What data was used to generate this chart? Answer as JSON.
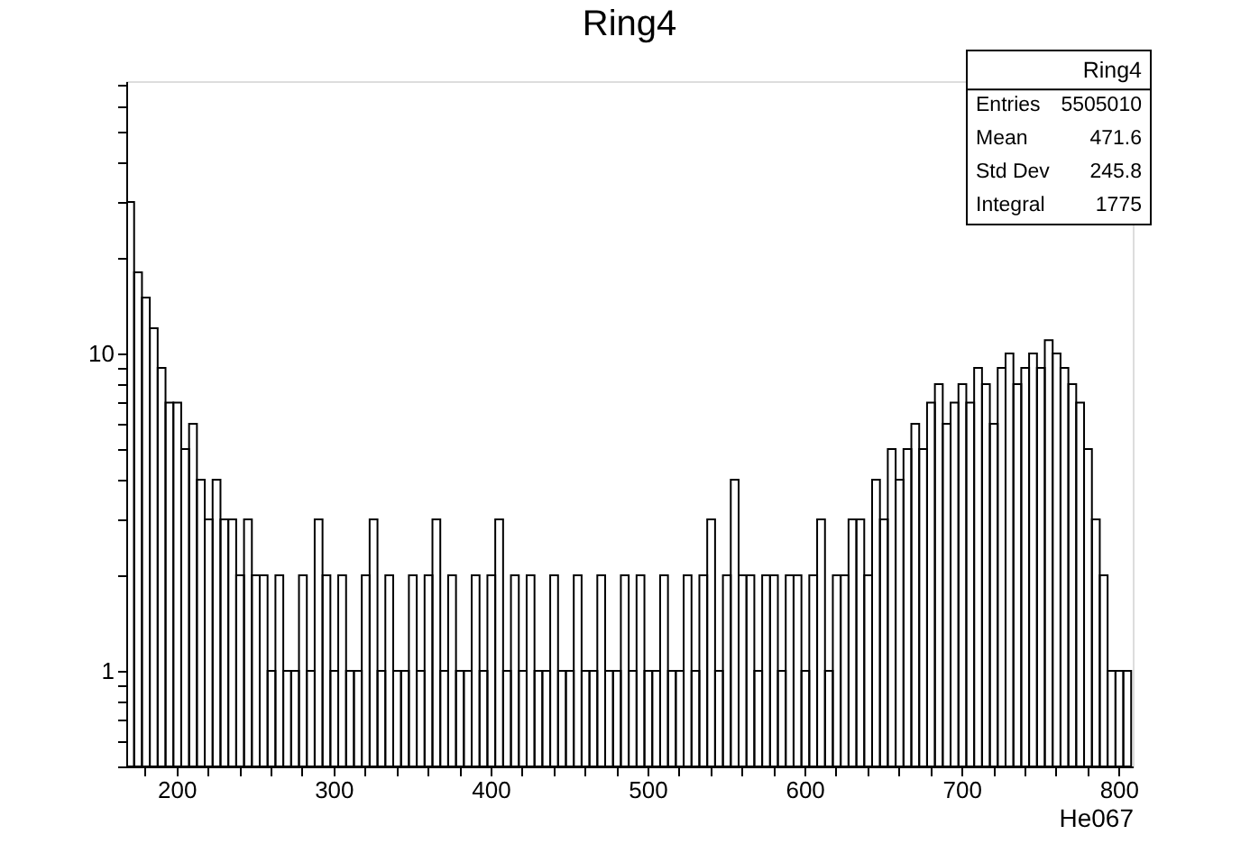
{
  "chart_data": {
    "type": "histogram",
    "title": "Ring4",
    "xlabel": "He067",
    "bins": [
      168,
      173,
      178,
      183,
      188,
      193,
      198,
      203,
      208,
      213,
      218,
      223,
      228,
      233,
      238,
      243,
      248,
      253,
      258,
      263,
      268,
      273,
      278,
      283,
      288,
      293,
      298,
      303,
      308,
      313,
      318,
      323,
      328,
      333,
      338,
      343,
      348,
      353,
      358,
      363,
      368,
      373,
      378,
      383,
      388,
      393,
      398,
      403,
      408,
      413,
      418,
      423,
      428,
      433,
      438,
      443,
      448,
      453,
      458,
      463,
      468,
      473,
      478,
      483,
      488,
      493,
      498,
      503,
      508,
      513,
      518,
      523,
      528,
      533,
      538,
      543,
      548,
      553,
      558,
      563,
      568,
      573,
      578,
      583,
      588,
      593,
      598,
      603,
      608,
      613,
      618,
      623,
      628,
      633,
      638,
      643,
      648,
      653,
      658,
      663,
      668,
      673,
      678,
      683,
      688,
      693,
      698,
      703,
      708,
      713,
      718,
      723,
      728,
      733,
      738,
      743,
      748,
      753,
      758,
      763,
      768,
      773,
      778,
      783,
      788,
      793,
      798,
      803,
      808
    ],
    "values": [
      30,
      18,
      15,
      12,
      9,
      7,
      7,
      5,
      6,
      4,
      3,
      4,
      3,
      3,
      2,
      3,
      2,
      2,
      1,
      2,
      1,
      1,
      2,
      1,
      3,
      2,
      1,
      2,
      1,
      1,
      2,
      3,
      1,
      2,
      1,
      1,
      2,
      1,
      2,
      3,
      1,
      2,
      1,
      1,
      2,
      1,
      2,
      3,
      1,
      2,
      1,
      2,
      1,
      1,
      2,
      1,
      1,
      2,
      1,
      1,
      2,
      1,
      1,
      2,
      1,
      2,
      1,
      1,
      2,
      1,
      1,
      2,
      1,
      2,
      3,
      1,
      2,
      4,
      2,
      2,
      1,
      2,
      2,
      1,
      2,
      2,
      1,
      2,
      3,
      1,
      2,
      2,
      3,
      3,
      2,
      4,
      3,
      5,
      4,
      5,
      6,
      5,
      7,
      8,
      6,
      7,
      8,
      7,
      9,
      8,
      6,
      9,
      10,
      8,
      9,
      10,
      9,
      11,
      10,
      9,
      8,
      7,
      5,
      3,
      2,
      1,
      1,
      1
    ],
    "color": "#000000",
    "log": "y",
    "xlim": [
      168,
      809
    ],
    "ylim": [
      0.5,
      72
    ],
    "xticks": [
      {
        "value": 180,
        "label": null
      },
      200,
      {
        "value": 220,
        "label": null
      },
      {
        "value": 240,
        "label": null
      },
      {
        "value": 260,
        "label": null
      },
      {
        "value": 280,
        "label": null
      },
      300,
      {
        "value": 320,
        "label": null
      },
      {
        "value": 340,
        "label": null
      },
      {
        "value": 360,
        "label": null
      },
      {
        "value": 380,
        "label": null
      },
      400,
      {
        "value": 420,
        "label": null
      },
      {
        "value": 440,
        "label": null
      },
      {
        "value": 460,
        "label": null
      },
      {
        "value": 480,
        "label": null
      },
      500,
      {
        "value": 520,
        "label": null
      },
      {
        "value": 540,
        "label": null
      },
      {
        "value": 560,
        "label": null
      },
      {
        "value": 580,
        "label": null
      },
      600,
      {
        "value": 620,
        "label": null
      },
      {
        "value": 640,
        "label": null
      },
      {
        "value": 660,
        "label": null
      },
      {
        "value": 680,
        "label": null
      },
      700,
      {
        "value": 720,
        "label": null
      },
      {
        "value": 740,
        "label": null
      },
      {
        "value": 760,
        "label": null
      },
      {
        "value": 780,
        "label": null
      },
      800
    ],
    "yticks": [
      {
        "value": 0.5,
        "label": null
      },
      {
        "value": 0.6,
        "label": null
      },
      {
        "value": 0.7,
        "label": null
      },
      {
        "value": 0.8,
        "label": null
      },
      {
        "value": 0.9,
        "label": null
      },
      1,
      {
        "value": 2,
        "label": null
      },
      {
        "value": 3,
        "label": null
      },
      {
        "value": 4,
        "label": null
      },
      {
        "value": 5,
        "label": null
      },
      {
        "value": 6,
        "label": null
      },
      {
        "value": 7,
        "label": null
      },
      {
        "value": 8,
        "label": null
      },
      {
        "value": 9,
        "label": null
      },
      10,
      {
        "value": 20,
        "label": null
      },
      {
        "value": 30,
        "label": null
      },
      {
        "value": 40,
        "label": null
      },
      {
        "value": 50,
        "label": null
      },
      {
        "value": 60,
        "label": null
      },
      {
        "value": 70,
        "label": null
      }
    ],
    "grid": false,
    "annotations": [
      "Ring4",
      "Entries 5505010",
      "Mean 471.6",
      "Std Dev 245.8",
      "Integral 1775"
    ]
  }
}
